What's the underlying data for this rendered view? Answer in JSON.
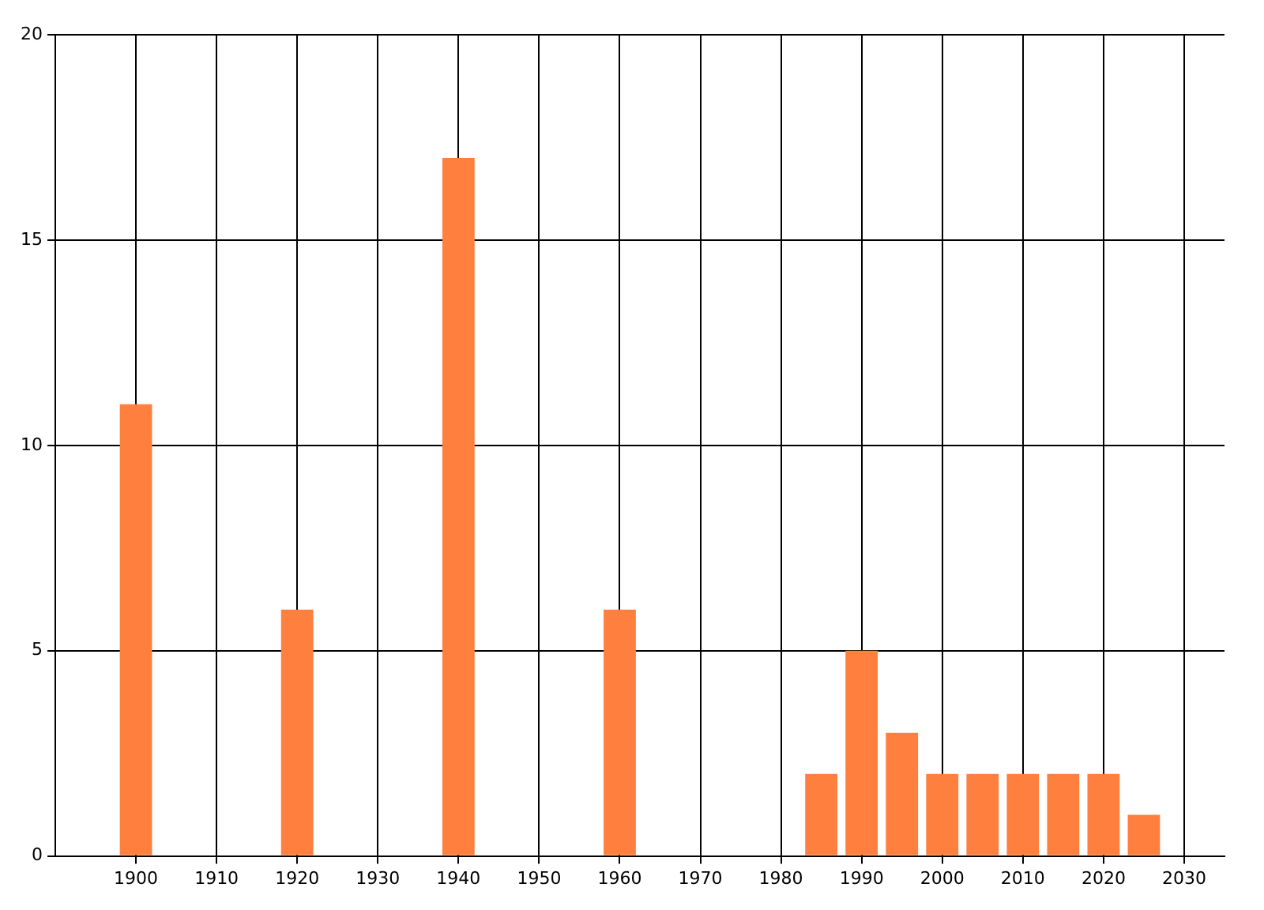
{
  "chart_data": {
    "type": "bar",
    "x": [
      1900,
      1920,
      1940,
      1960,
      1985,
      1990,
      1995,
      2000,
      2005,
      2010,
      2015,
      2020,
      2025
    ],
    "values": [
      11,
      6,
      17,
      6,
      2,
      5,
      3,
      2,
      2,
      2,
      2,
      2,
      1
    ],
    "color": "#ff7f3f",
    "xlim": [
      1890,
      2035
    ],
    "xticks": [
      1900,
      1910,
      1920,
      1930,
      1940,
      1950,
      1960,
      1970,
      1980,
      1990,
      2000,
      2010,
      2020,
      2030
    ],
    "ylim": [
      0,
      20
    ],
    "yticks": [
      0,
      5,
      10,
      15,
      20
    ],
    "grid": true,
    "legend": false
  }
}
